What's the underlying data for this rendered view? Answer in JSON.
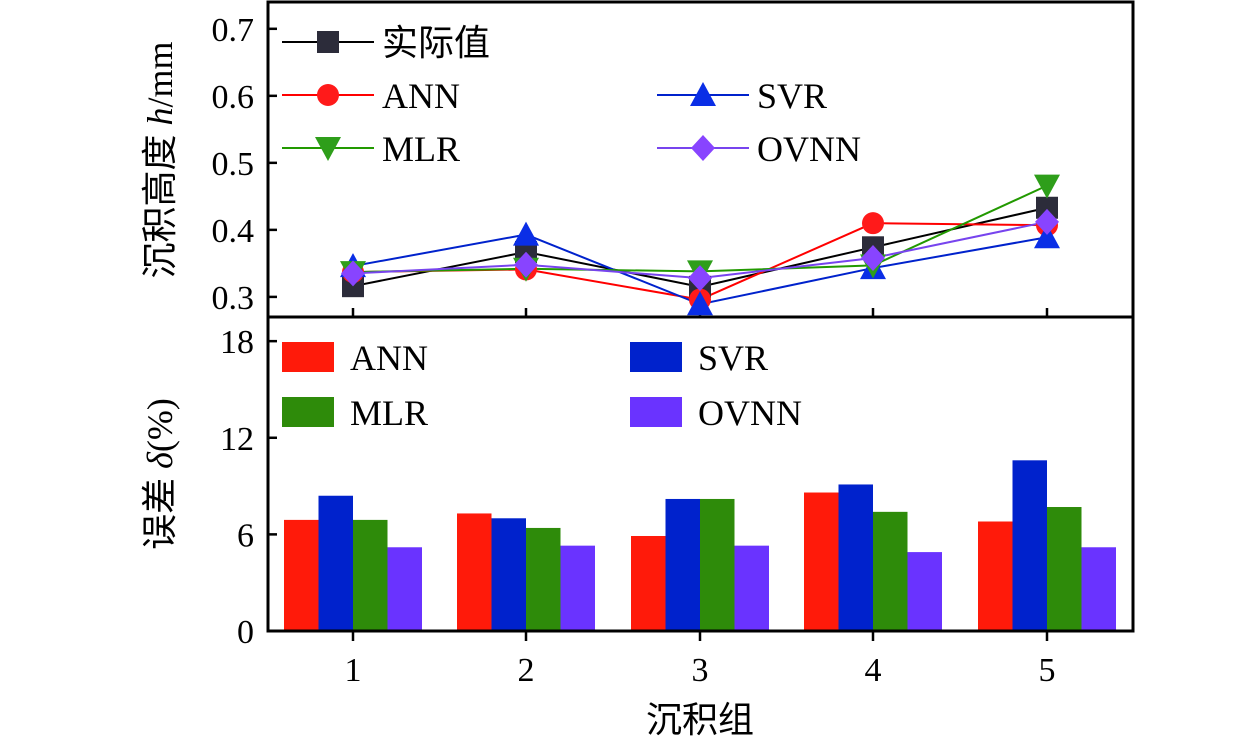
{
  "chart_data": [
    {
      "type": "line",
      "x": [
        1,
        2,
        3,
        4,
        5
      ],
      "xlabel": "",
      "ylabel": {
        "prefix": "沉积高度 ",
        "italic": "h",
        "suffix": "/mm"
      },
      "ylim": [
        0.27,
        0.74
      ],
      "yticks": [
        "0.3",
        "0.4",
        "0.5",
        "0.6",
        "0.7"
      ],
      "yticks_values": [
        0.3,
        0.4,
        0.5,
        0.6,
        0.7
      ],
      "series": [
        {
          "name": "实际值",
          "marker": "square",
          "color": "#000000",
          "marker_color": "#2c2c3a",
          "values": [
            0.316,
            0.367,
            0.315,
            0.374,
            0.433
          ]
        },
        {
          "name": "ANN",
          "marker": "circle",
          "color": "#ff0000",
          "marker_color": "#ff1a1a",
          "values": [
            0.337,
            0.341,
            0.296,
            0.41,
            0.407
          ]
        },
        {
          "name": "SVR",
          "marker": "triangle-up",
          "color": "#0022cc",
          "marker_color": "#0a2ee6",
          "values": [
            0.346,
            0.393,
            0.289,
            0.343,
            0.389
          ]
        },
        {
          "name": "MLR",
          "marker": "triangle-down",
          "color": "#229900",
          "marker_color": "#2e9e1a",
          "values": [
            0.337,
            0.342,
            0.338,
            0.347,
            0.466
          ]
        },
        {
          "name": "OVNN",
          "marker": "diamond",
          "color": "#7744ee",
          "marker_color": "#8844ff",
          "values": [
            0.335,
            0.348,
            0.328,
            0.358,
            0.412
          ]
        }
      ]
    },
    {
      "type": "bar",
      "categories": [
        "1",
        "2",
        "3",
        "4",
        "5"
      ],
      "xlabel": "沉积组",
      "ylabel": {
        "prefix": "误差 ",
        "italic": "δ",
        "suffix": "(%)"
      },
      "ylim": [
        0,
        19.5
      ],
      "yticks": [
        "0",
        "6",
        "12",
        "18"
      ],
      "yticks_values": [
        0,
        6,
        12,
        18
      ],
      "series": [
        {
          "name": "ANN",
          "color": "#ff1a0a",
          "values": [
            6.9,
            7.3,
            5.9,
            8.6,
            6.8
          ]
        },
        {
          "name": "SVR",
          "color": "#0022cc",
          "values": [
            8.4,
            7.0,
            8.2,
            9.1,
            10.6
          ]
        },
        {
          "name": "MLR",
          "color": "#2e8b0a",
          "values": [
            6.9,
            6.4,
            8.2,
            7.4,
            7.7
          ]
        },
        {
          "name": "OVNN",
          "color": "#6a33ff",
          "values": [
            5.2,
            5.3,
            5.3,
            4.9,
            5.2
          ]
        }
      ]
    }
  ]
}
